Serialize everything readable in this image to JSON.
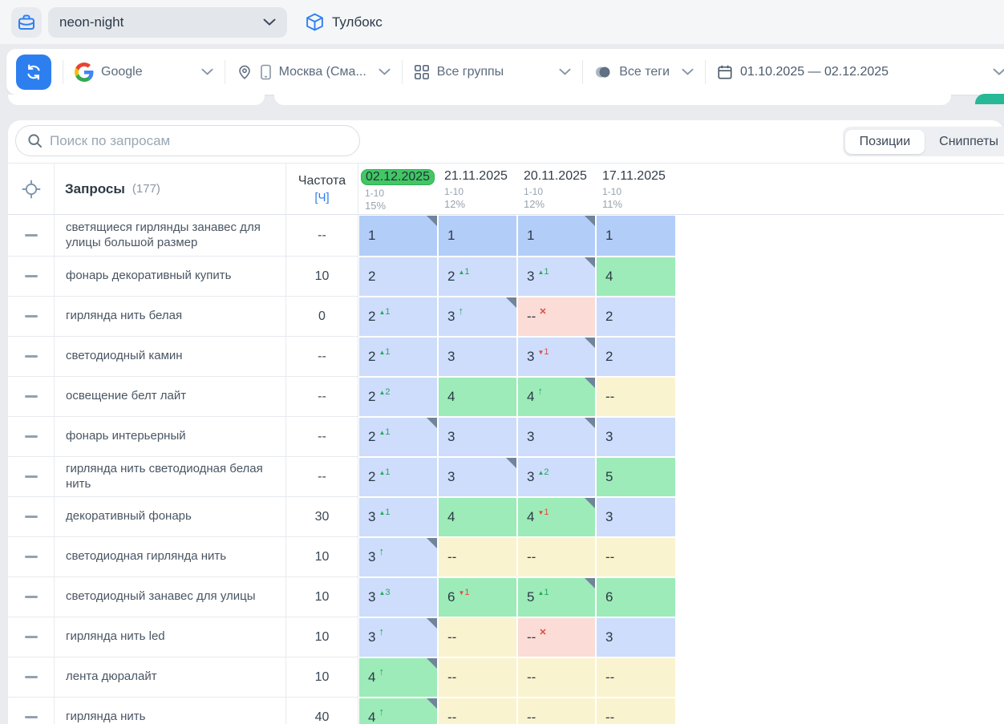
{
  "app": {
    "project_select": "neon-night",
    "toolbox_label": "Тулбокс"
  },
  "toolbar": {
    "search_engine": "Google",
    "region": "Москва (Сма...",
    "groups": "Все группы",
    "tags": "Все теги",
    "date_range": "01.10.2025 — 02.12.2025"
  },
  "panel": {
    "search_placeholder": "Поиск по запросам",
    "tabs": [
      {
        "label": "Позиции",
        "active": true
      },
      {
        "label": "Сниппеты",
        "active": false
      }
    ]
  },
  "colors": {
    "accent_blue": "#2d7ff0",
    "selected_date_green": "#42c763",
    "teal_button": "#27b897",
    "cell_top1_blue": "#b2cdf8",
    "cell_top3_blue": "#cdddfb",
    "cell_top10_green": "#9debb8",
    "cell_none_yellow": "#faf3cf",
    "cell_lost_pink": "#fbdcd6",
    "delta_up_green": "#27a75d",
    "delta_down_red": "#dd4b41"
  },
  "table": {
    "queries_header": "Запросы",
    "queries_count": "(177)",
    "frequency_header": "Частота",
    "frequency_link": "[Ч]",
    "date_columns": [
      {
        "date": "02.12.2025",
        "range": "1-10",
        "percent": "15%",
        "selected": true
      },
      {
        "date": "21.11.2025",
        "range": "1-10",
        "percent": "12%",
        "selected": false
      },
      {
        "date": "20.11.2025",
        "range": "1-10",
        "percent": "12%",
        "selected": false
      },
      {
        "date": "17.11.2025",
        "range": "1-10",
        "percent": "11%",
        "selected": false
      }
    ],
    "rows": [
      {
        "query": "светящиеся гирлянды занавес для улицы большой размер",
        "frequency": "--",
        "cells": [
          {
            "value": "1",
            "bg": "cell_top1_blue",
            "corner": true
          },
          {
            "value": "1",
            "bg": "cell_top1_blue"
          },
          {
            "value": "1",
            "bg": "cell_top1_blue",
            "corner": true
          },
          {
            "value": "1",
            "bg": "cell_top1_blue"
          }
        ]
      },
      {
        "query": "фонарь декоративный купить",
        "frequency": "10",
        "cells": [
          {
            "value": "2",
            "bg": "cell_top3_blue"
          },
          {
            "value": "2",
            "bg": "cell_top3_blue",
            "delta": {
              "type": "up",
              "amount": "1"
            }
          },
          {
            "value": "3",
            "bg": "cell_top3_blue",
            "delta": {
              "type": "up",
              "amount": "1"
            },
            "corner": true
          },
          {
            "value": "4",
            "bg": "cell_top10_green"
          }
        ]
      },
      {
        "query": "гирлянда нить белая",
        "frequency": "0",
        "cells": [
          {
            "value": "2",
            "bg": "cell_top3_blue",
            "delta": {
              "type": "up",
              "amount": "1"
            }
          },
          {
            "value": "3",
            "bg": "cell_top3_blue",
            "delta": {
              "type": "arrow"
            },
            "corner": true
          },
          {
            "value": "--",
            "bg": "cell_lost_pink",
            "delta": {
              "type": "x"
            }
          },
          {
            "value": "2",
            "bg": "cell_top3_blue"
          }
        ]
      },
      {
        "query": "светодиодный камин",
        "frequency": "--",
        "cells": [
          {
            "value": "2",
            "bg": "cell_top3_blue",
            "delta": {
              "type": "up",
              "amount": "1"
            }
          },
          {
            "value": "3",
            "bg": "cell_top3_blue"
          },
          {
            "value": "3",
            "bg": "cell_top3_blue",
            "delta": {
              "type": "down",
              "amount": "1"
            },
            "corner": true
          },
          {
            "value": "2",
            "bg": "cell_top3_blue"
          }
        ]
      },
      {
        "query": "освещение белт лайт",
        "frequency": "--",
        "cells": [
          {
            "value": "2",
            "bg": "cell_top3_blue",
            "delta": {
              "type": "up",
              "amount": "2"
            }
          },
          {
            "value": "4",
            "bg": "cell_top10_green"
          },
          {
            "value": "4",
            "bg": "cell_top10_green",
            "delta": {
              "type": "arrow"
            },
            "corner": true
          },
          {
            "value": "--",
            "bg": "cell_none_yellow"
          }
        ]
      },
      {
        "query": "фонарь интерьерный",
        "frequency": "--",
        "cells": [
          {
            "value": "2",
            "bg": "cell_top3_blue",
            "delta": {
              "type": "up",
              "amount": "1"
            },
            "corner": true
          },
          {
            "value": "3",
            "bg": "cell_top3_blue"
          },
          {
            "value": "3",
            "bg": "cell_top3_blue",
            "corner": true
          },
          {
            "value": "3",
            "bg": "cell_top3_blue"
          }
        ]
      },
      {
        "query": "гирлянда нить светодиодная белая нить",
        "frequency": "--",
        "cells": [
          {
            "value": "2",
            "bg": "cell_top3_blue",
            "delta": {
              "type": "up",
              "amount": "1"
            }
          },
          {
            "value": "3",
            "bg": "cell_top3_blue",
            "corner": true
          },
          {
            "value": "3",
            "bg": "cell_top3_blue",
            "delta": {
              "type": "up",
              "amount": "2"
            }
          },
          {
            "value": "5",
            "bg": "cell_top10_green"
          }
        ]
      },
      {
        "query": "декоративный фонарь",
        "frequency": "30",
        "cells": [
          {
            "value": "3",
            "bg": "cell_top3_blue",
            "delta": {
              "type": "up",
              "amount": "1"
            }
          },
          {
            "value": "4",
            "bg": "cell_top10_green"
          },
          {
            "value": "4",
            "bg": "cell_top10_green",
            "delta": {
              "type": "down",
              "amount": "1"
            },
            "corner": true
          },
          {
            "value": "3",
            "bg": "cell_top3_blue"
          }
        ]
      },
      {
        "query": "светодиодная гирлянда нить",
        "frequency": "10",
        "cells": [
          {
            "value": "3",
            "bg": "cell_top3_blue",
            "delta": {
              "type": "arrow"
            },
            "corner": true
          },
          {
            "value": "--",
            "bg": "cell_none_yellow"
          },
          {
            "value": "--",
            "bg": "cell_none_yellow"
          },
          {
            "value": "--",
            "bg": "cell_none_yellow"
          }
        ]
      },
      {
        "query": "светодиодный занавес для улицы",
        "frequency": "10",
        "cells": [
          {
            "value": "3",
            "bg": "cell_top3_blue",
            "delta": {
              "type": "up",
              "amount": "3"
            }
          },
          {
            "value": "6",
            "bg": "cell_top10_green",
            "delta": {
              "type": "down",
              "amount": "1"
            }
          },
          {
            "value": "5",
            "bg": "cell_top10_green",
            "delta": {
              "type": "up",
              "amount": "1"
            },
            "corner": true
          },
          {
            "value": "6",
            "bg": "cell_top10_green"
          }
        ]
      },
      {
        "query": "гирлянда нить led",
        "frequency": "10",
        "cells": [
          {
            "value": "3",
            "bg": "cell_top3_blue",
            "delta": {
              "type": "arrow"
            },
            "corner": true
          },
          {
            "value": "--",
            "bg": "cell_none_yellow"
          },
          {
            "value": "--",
            "bg": "cell_lost_pink",
            "delta": {
              "type": "x"
            }
          },
          {
            "value": "3",
            "bg": "cell_top3_blue"
          }
        ]
      },
      {
        "query": "лента дюралайт",
        "frequency": "10",
        "cells": [
          {
            "value": "4",
            "bg": "cell_top10_green",
            "delta": {
              "type": "arrow"
            },
            "corner": true
          },
          {
            "value": "--",
            "bg": "cell_none_yellow"
          },
          {
            "value": "--",
            "bg": "cell_none_yellow"
          },
          {
            "value": "--",
            "bg": "cell_none_yellow"
          }
        ]
      },
      {
        "query": "гирлянда нить",
        "frequency": "40",
        "cells": [
          {
            "value": "4",
            "bg": "cell_top10_green",
            "delta": {
              "type": "arrow"
            },
            "corner": true
          },
          {
            "value": "--",
            "bg": "cell_none_yellow"
          },
          {
            "value": "--",
            "bg": "cell_none_yellow"
          },
          {
            "value": "--",
            "bg": "cell_none_yellow"
          }
        ]
      }
    ]
  }
}
